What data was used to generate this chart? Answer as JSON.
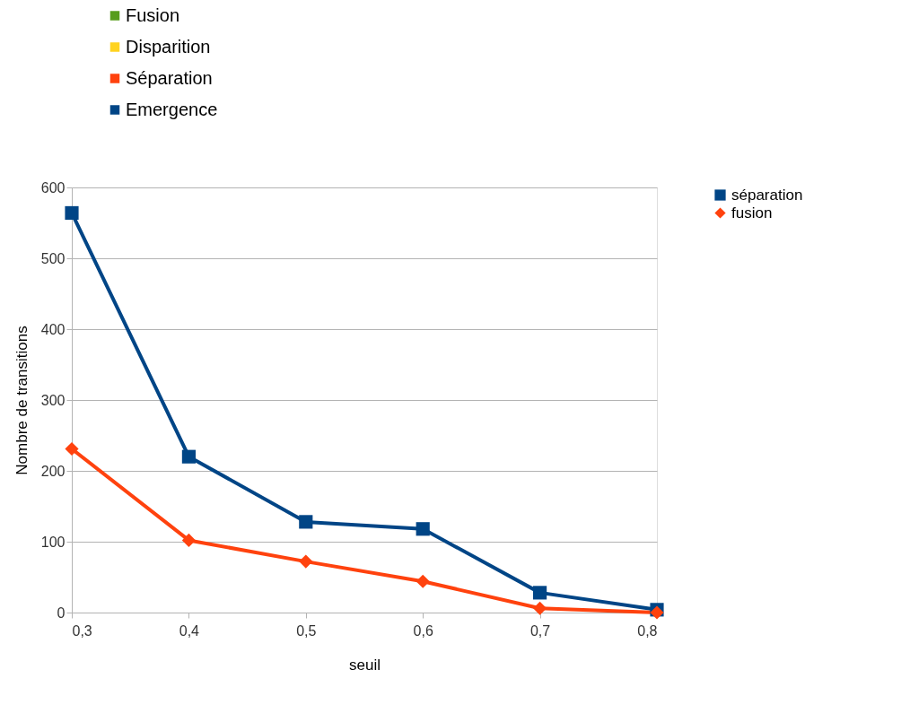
{
  "chart_data": [
    {
      "type": "other",
      "categories": [
        "Fusion",
        "Disparition",
        "Séparation",
        "Emergence"
      ],
      "colors": [
        "#579d1c",
        "#ffd320",
        "#ff420e",
        "#004586"
      ]
    },
    {
      "type": "line",
      "xlabel": "seuil",
      "ylabel": "Nombre de transitions",
      "x": [
        0.3,
        0.4,
        0.5,
        0.6,
        0.7,
        0.8
      ],
      "xlim": [
        0.3,
        0.8
      ],
      "xticks": [
        {
          "value": 0.3,
          "label": "0,3"
        },
        {
          "value": 0.4,
          "label": "0,4"
        },
        {
          "value": 0.5,
          "label": "0,5"
        },
        {
          "value": 0.6,
          "label": "0,6"
        },
        {
          "value": 0.7,
          "label": "0,7"
        },
        {
          "value": 0.8,
          "label": "0,8"
        }
      ],
      "ylim": [
        0,
        600
      ],
      "yticks": [
        0,
        100,
        200,
        300,
        400,
        500,
        600
      ],
      "grid": "y",
      "legend": "right",
      "line_style": "solid",
      "series": [
        {
          "name": "séparation",
          "color": "#004586",
          "marker": "square",
          "values": [
            564,
            220,
            128,
            118,
            28,
            4
          ]
        },
        {
          "name": "fusion",
          "color": "#ff420e",
          "marker": "diamond",
          "values": [
            231,
            102,
            72,
            44,
            6,
            0
          ]
        }
      ]
    }
  ]
}
